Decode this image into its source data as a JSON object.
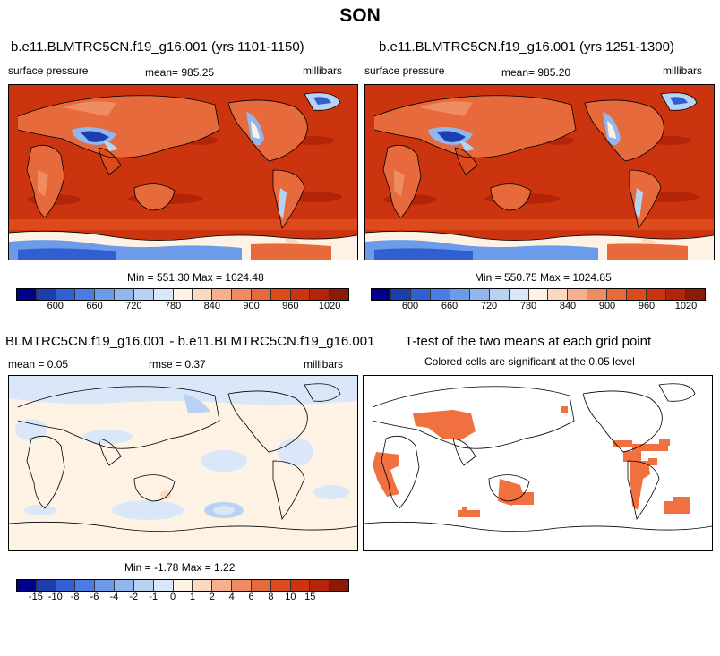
{
  "season": "SON",
  "panel1": {
    "title": "b.e11.BLMTRC5CN.f19_g16.001 (yrs 1101-1150)",
    "var": "surface pressure",
    "mean": "mean= 985.25",
    "units": "millibars",
    "minmax": "Min = 551.30 Max = 1024.48"
  },
  "panel2": {
    "title": "b.e11.BLMTRC5CN.f19_g16.001 (yrs 1251-1300)",
    "var": "surface pressure",
    "mean": "mean= 985.20",
    "units": "millibars",
    "minmax": "Min = 550.75 Max = 1024.85"
  },
  "panel3": {
    "title": "BLMTRC5CN.f19_g16.001 - b.e11.BLMTRC5CN.f19_g16.001",
    "mean": "mean =   0.05",
    "rmse": "rmse =   0.37",
    "units": "millibars",
    "minmax": "Min =  -1.78 Max =   1.22"
  },
  "panel4": {
    "title": "T-test of the two means at each grid point",
    "subtitle": "Colored cells are significant at the 0.05 level"
  },
  "colorbar_abs": {
    "colors": [
      "#00008b",
      "#1c3fae",
      "#2f5fd0",
      "#4a7de3",
      "#6c9bea",
      "#92b7ef",
      "#b8d2f4",
      "#d9e7f8",
      "#fdf2e4",
      "#fbd9bf",
      "#f6b08d",
      "#f08c62",
      "#e66a3c",
      "#dd4b1c",
      "#cc3410",
      "#b32409",
      "#8b1a06"
    ],
    "labels": [
      "600",
      "660",
      "720",
      "780",
      "840",
      "900",
      "960",
      "1020"
    ]
  },
  "colorbar_diff": {
    "colors": [
      "#00008b",
      "#1c3fae",
      "#2f5fd0",
      "#4a7de3",
      "#6c9bea",
      "#92b7ef",
      "#b8d2f4",
      "#d9e7f8",
      "#fdf2e4",
      "#fbd9bf",
      "#f6b08d",
      "#f08c62",
      "#e66a3c",
      "#dd4b1c",
      "#cc3410",
      "#b32409",
      "#8b1a06"
    ],
    "labels": [
      "-15",
      "-10",
      "-8",
      "-6",
      "-4",
      "-2",
      "-1",
      "0",
      "1",
      "2",
      "4",
      "6",
      "8",
      "10",
      "15"
    ]
  }
}
